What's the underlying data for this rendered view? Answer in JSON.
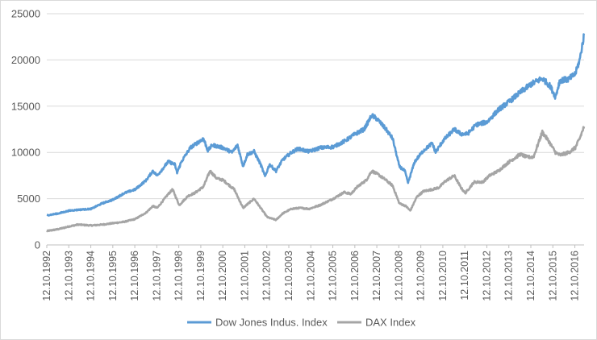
{
  "chart_data": {
    "type": "line",
    "title": "",
    "xlabel": "",
    "ylabel": "",
    "ylim": [
      0,
      25000
    ],
    "y_ticks": [
      0,
      5000,
      10000,
      15000,
      20000,
      25000
    ],
    "y_tick_labels": [
      "0",
      "5000",
      "10000",
      "15000",
      "20000",
      "25000"
    ],
    "x_tick_labels": [
      "12.10.1992",
      "12.10.1993",
      "12.10.1994",
      "12.10.1995",
      "12.10.1996",
      "12.10.1997",
      "12.10.1998",
      "12.10.1999",
      "12.10.2000",
      "12.10.2001",
      "12.10.2002",
      "12.10.2003",
      "12.10.2004",
      "12.10.2005",
      "12.10.2006",
      "12.10.2007",
      "12.10.2008",
      "12.10.2009",
      "12.10.2010",
      "12.10.2011",
      "12.10.2012",
      "12.10.2013",
      "12.10.2014",
      "12.10.2015",
      "12.10.2016"
    ],
    "x_range_years": [
      1992.78,
      2017.2
    ],
    "grid": "horizontal",
    "legend_position": "bottom",
    "series": [
      {
        "name": "Dow Jones Indus. Index",
        "color": "#5b9bd5",
        "x": [
          1992.78,
          1993.3,
          1993.8,
          1994.2,
          1994.8,
          1995.3,
          1995.8,
          1996.3,
          1996.8,
          1997.3,
          1997.6,
          1997.8,
          1998.3,
          1998.6,
          1998.7,
          1998.9,
          1999.3,
          1999.6,
          1999.9,
          2000.1,
          2000.3,
          2000.8,
          2001.2,
          2001.45,
          2001.7,
          2001.9,
          2002.2,
          2002.5,
          2002.7,
          2002.9,
          2003.2,
          2003.5,
          2003.9,
          2004.2,
          2004.7,
          2005.2,
          2005.8,
          2006.3,
          2006.8,
          2007.2,
          2007.55,
          2007.8,
          2008.2,
          2008.5,
          2008.8,
          2009.05,
          2009.2,
          2009.5,
          2009.9,
          2010.3,
          2010.45,
          2010.8,
          2011.3,
          2011.6,
          2011.9,
          2012.3,
          2012.8,
          2013.3,
          2013.8,
          2014.3,
          2014.8,
          2015.3,
          2015.65,
          2015.9,
          2016.1,
          2016.5,
          2016.8,
          2017.0,
          2017.2
        ],
        "y": [
          3200,
          3400,
          3700,
          3800,
          3900,
          4500,
          4900,
          5600,
          6000,
          7000,
          8000,
          7500,
          9000,
          8700,
          7800,
          9000,
          10500,
          11000,
          11500,
          10200,
          10800,
          10500,
          10000,
          10800,
          8500,
          9800,
          10100,
          8700,
          7400,
          8700,
          8000,
          9200,
          10000,
          10400,
          10100,
          10500,
          10600,
          11200,
          12000,
          12500,
          14000,
          13600,
          12500,
          11500,
          8500,
          8000,
          6700,
          9000,
          10200,
          11000,
          10000,
          11300,
          12500,
          12000,
          12000,
          13000,
          13300,
          14600,
          15500,
          16500,
          17400,
          18000,
          17200,
          16000,
          17800,
          17900,
          18500,
          20000,
          22700
        ]
      },
      {
        "name": "DAX Index",
        "color": "#a5a5a5",
        "x": [
          1992.78,
          1993.3,
          1993.8,
          1994.2,
          1994.8,
          1995.3,
          1995.8,
          1996.3,
          1996.8,
          1997.3,
          1997.6,
          1997.8,
          1998.3,
          1998.5,
          1998.8,
          1999.2,
          1999.5,
          1999.9,
          2000.2,
          2000.5,
          2000.8,
          2001.3,
          2001.7,
          2002.2,
          2002.5,
          2002.8,
          2003.2,
          2003.5,
          2003.9,
          2004.3,
          2004.7,
          2005.2,
          2005.8,
          2006.3,
          2006.6,
          2006.9,
          2007.3,
          2007.55,
          2007.85,
          2008.2,
          2008.5,
          2008.8,
          2009.1,
          2009.3,
          2009.6,
          2009.9,
          2010.3,
          2010.6,
          2010.9,
          2011.3,
          2011.6,
          2011.8,
          2012.2,
          2012.6,
          2012.9,
          2013.3,
          2013.8,
          2014.3,
          2014.6,
          2014.9,
          2015.3,
          2015.6,
          2015.9,
          2016.1,
          2016.5,
          2016.8,
          2017.0,
          2017.2
        ],
        "y": [
          1500,
          1700,
          2000,
          2200,
          2100,
          2200,
          2350,
          2500,
          2800,
          3500,
          4200,
          4000,
          5500,
          6000,
          4300,
          5300,
          5600,
          6300,
          8000,
          7200,
          7000,
          6000,
          4000,
          5000,
          4000,
          3000,
          2700,
          3400,
          3900,
          4000,
          3900,
          4300,
          5000,
          5700,
          5500,
          6300,
          7000,
          8000,
          7600,
          7000,
          6400,
          4500,
          4200,
          3700,
          5200,
          5800,
          6000,
          6200,
          6900,
          7500,
          6200,
          5600,
          6800,
          6800,
          7500,
          8000,
          9000,
          9800,
          9500,
          9500,
          12200,
          11200,
          10000,
          9700,
          10000,
          10500,
          11500,
          12800
        ]
      }
    ]
  }
}
